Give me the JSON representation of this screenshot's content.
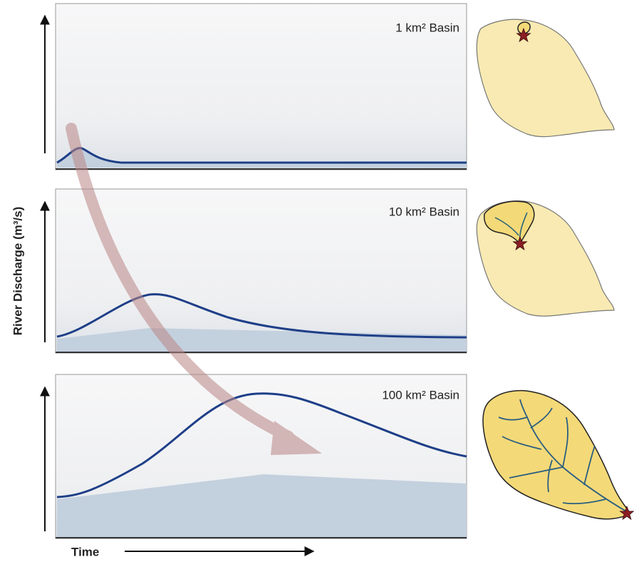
{
  "axes": {
    "y_label": "River Discharge (m³/s)",
    "x_label": "Time"
  },
  "panels": [
    {
      "label": "1 km² Basin"
    },
    {
      "label": "10 km² Basin"
    },
    {
      "label": "100 km² Basin"
    }
  ]
}
